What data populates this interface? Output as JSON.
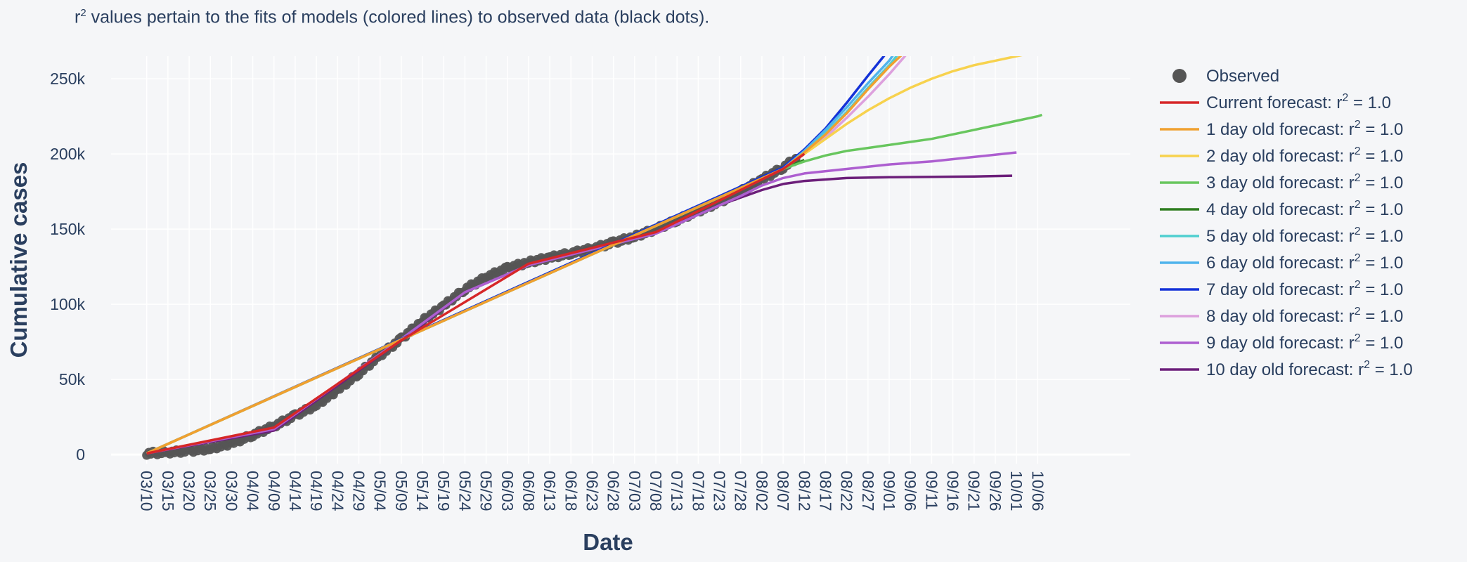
{
  "note": {
    "prefix": "r",
    "sup": "2",
    "text": " values pertain to the fits of models (colored lines) to observed data (black dots)."
  },
  "chart_data": {
    "type": "line",
    "title": "",
    "xlabel": "Date",
    "ylabel": "Cumulative cases",
    "x_tick_labels": [
      "03/10",
      "03/15",
      "03/20",
      "03/25",
      "03/30",
      "04/04",
      "04/09",
      "04/14",
      "04/19",
      "04/24",
      "04/29",
      "05/04",
      "05/09",
      "05/14",
      "05/19",
      "05/24",
      "05/29",
      "06/03",
      "06/08",
      "06/13",
      "06/18",
      "06/23",
      "06/28",
      "07/03",
      "07/08",
      "07/13",
      "07/18",
      "07/23",
      "07/28",
      "08/02",
      "08/07",
      "08/12",
      "08/17",
      "08/22",
      "08/27",
      "09/01",
      "09/06",
      "09/11",
      "09/16",
      "09/21",
      "09/26",
      "10/01",
      "10/06"
    ],
    "xlim": [
      "03/07",
      "10/09"
    ],
    "y_ticks": [
      0,
      50000,
      100000,
      150000,
      200000,
      250000
    ],
    "y_tick_labels": [
      "0",
      "50k",
      "100k",
      "150k",
      "200k",
      "250k"
    ],
    "ylim": [
      -6000,
      265000
    ],
    "grid": true,
    "legend_position": "right",
    "observed": {
      "name": "Observed",
      "color": "#555555",
      "points": [
        [
          "03/10",
          800
        ],
        [
          "03/15",
          1500
        ],
        [
          "03/20",
          2500
        ],
        [
          "03/25",
          4000
        ],
        [
          "03/30",
          7500
        ],
        [
          "04/04",
          13000
        ],
        [
          "04/09",
          19000
        ],
        [
          "04/14",
          26000
        ],
        [
          "04/19",
          33000
        ],
        [
          "04/24",
          43000
        ],
        [
          "04/29",
          54000
        ],
        [
          "05/04",
          66000
        ],
        [
          "05/09",
          77000
        ],
        [
          "05/14",
          89000
        ],
        [
          "05/19",
          99000
        ],
        [
          "05/24",
          110000
        ],
        [
          "05/29",
          118000
        ],
        [
          "06/03",
          124000
        ],
        [
          "06/08",
          128000
        ],
        [
          "06/13",
          131000
        ],
        [
          "06/18",
          134000
        ],
        [
          "06/23",
          137000
        ],
        [
          "06/28",
          141000
        ],
        [
          "07/03",
          145000
        ],
        [
          "07/08",
          150000
        ],
        [
          "07/13",
          156000
        ],
        [
          "07/18",
          162000
        ],
        [
          "07/23",
          168000
        ],
        [
          "07/28",
          175000
        ],
        [
          "08/02",
          183000
        ],
        [
          "08/07",
          191000
        ],
        [
          "08/10",
          197000
        ]
      ]
    },
    "series": [
      {
        "name": "Current forecast: r",
        "r2": " = 1.0",
        "color": "#d62728",
        "points": [
          [
            "03/10",
            800
          ],
          [
            "04/09",
            18000
          ],
          [
            "05/09",
            76000
          ],
          [
            "06/08",
            127000
          ],
          [
            "07/08",
            148000
          ],
          [
            "08/07",
            190000
          ],
          [
            "08/12",
            200000
          ]
        ]
      },
      {
        "name": "1 day old forecast: r",
        "r2": " = 1.0",
        "color": "#f0a030",
        "points": [
          [
            "03/10",
            800
          ],
          [
            "08/07",
            190000
          ],
          [
            "08/12",
            201000
          ],
          [
            "08/17",
            213000
          ],
          [
            "08/22",
            227000
          ],
          [
            "08/27",
            243000
          ],
          [
            "09/01",
            258000
          ],
          [
            "09/04",
            266000
          ]
        ]
      },
      {
        "name": "2 day old forecast: r",
        "r2": " = 1.0",
        "color": "#f7d24e",
        "points": [
          [
            "03/10",
            800
          ],
          [
            "08/07",
            190000
          ],
          [
            "08/12",
            200000
          ],
          [
            "08/17",
            210000
          ],
          [
            "08/22",
            220000
          ],
          [
            "08/27",
            229000
          ],
          [
            "09/01",
            237000
          ],
          [
            "09/06",
            244000
          ],
          [
            "09/11",
            250000
          ],
          [
            "09/16",
            255000
          ],
          [
            "09/21",
            259000
          ],
          [
            "09/26",
            262000
          ],
          [
            "10/01",
            265000
          ],
          [
            "10/06",
            268000
          ]
        ]
      },
      {
        "name": "3 day old forecast: r",
        "r2": " = 1.0",
        "color": "#68c65e",
        "points": [
          [
            "03/10",
            800
          ],
          [
            "08/07",
            190000
          ],
          [
            "08/12",
            195000
          ],
          [
            "08/17",
            199000
          ],
          [
            "08/22",
            202000
          ],
          [
            "08/27",
            204000
          ],
          [
            "09/01",
            206000
          ],
          [
            "09/06",
            208000
          ],
          [
            "09/11",
            210000
          ],
          [
            "09/16",
            213000
          ],
          [
            "09/21",
            216000
          ],
          [
            "09/26",
            219000
          ],
          [
            "10/01",
            222000
          ],
          [
            "10/06",
            225000
          ],
          [
            "10/07",
            226000
          ]
        ]
      },
      {
        "name": "4 day old forecast: r",
        "r2": " = 1.0",
        "color": "#2e7d1f",
        "points": [
          [
            "03/10",
            800
          ],
          [
            "08/07",
            190000
          ],
          [
            "08/12",
            196000
          ]
        ]
      },
      {
        "name": "5 day old forecast: r",
        "r2": " = 1.0",
        "color": "#4fcfd0",
        "points": [
          [
            "03/10",
            800
          ],
          [
            "08/07",
            190000
          ],
          [
            "08/12",
            201000
          ],
          [
            "08/17",
            214000
          ],
          [
            "08/22",
            228000
          ],
          [
            "08/27",
            244000
          ],
          [
            "09/01",
            259000
          ],
          [
            "09/03",
            266000
          ]
        ]
      },
      {
        "name": "6 day old forecast: r",
        "r2": " = 1.0",
        "color": "#4fb3ec",
        "points": [
          [
            "03/10",
            800
          ],
          [
            "08/07",
            190000
          ],
          [
            "08/12",
            202000
          ],
          [
            "08/17",
            216000
          ],
          [
            "08/22",
            231000
          ],
          [
            "08/27",
            247000
          ],
          [
            "09/01",
            262000
          ],
          [
            "09/02",
            266000
          ]
        ]
      },
      {
        "name": "7 day old forecast: r",
        "r2": " = 1.0",
        "color": "#1432d8",
        "points": [
          [
            "03/10",
            800
          ],
          [
            "08/07",
            191000
          ],
          [
            "08/12",
            203000
          ],
          [
            "08/17",
            217000
          ],
          [
            "08/22",
            234000
          ],
          [
            "08/27",
            252000
          ],
          [
            "08/31",
            266000
          ]
        ]
      },
      {
        "name": "8 day old forecast: r",
        "r2": " = 1.0",
        "color": "#dda0dd",
        "points": [
          [
            "03/10",
            800
          ],
          [
            "08/07",
            190000
          ],
          [
            "08/12",
            200000
          ],
          [
            "08/17",
            211000
          ],
          [
            "08/22",
            224000
          ],
          [
            "08/27",
            238000
          ],
          [
            "09/01",
            253000
          ],
          [
            "09/05",
            266000
          ]
        ]
      },
      {
        "name": "9 day old forecast: r",
        "r2": " = 1.0",
        "color": "#ad5fd0",
        "points": [
          [
            "03/10",
            800
          ],
          [
            "04/09",
            17000
          ],
          [
            "05/09",
            77000
          ],
          [
            "05/24",
            108000
          ],
          [
            "06/08",
            126000
          ],
          [
            "07/08",
            147000
          ],
          [
            "07/28",
            172000
          ],
          [
            "08/02",
            179000
          ],
          [
            "08/07",
            184000
          ],
          [
            "08/12",
            187000
          ],
          [
            "08/22",
            190000
          ],
          [
            "09/01",
            193000
          ],
          [
            "09/11",
            195000
          ],
          [
            "09/21",
            198000
          ],
          [
            "10/01",
            201000
          ]
        ]
      },
      {
        "name": "10 day old forecast: r",
        "r2": " = 1.0",
        "color": "#6c1f7a",
        "points": [
          [
            "03/10",
            800
          ],
          [
            "04/09",
            16000
          ],
          [
            "05/09",
            76000
          ],
          [
            "05/24",
            108000
          ],
          [
            "06/08",
            126000
          ],
          [
            "07/08",
            147000
          ],
          [
            "07/23",
            166000
          ],
          [
            "08/02",
            176000
          ],
          [
            "08/07",
            180000
          ],
          [
            "08/12",
            182000
          ],
          [
            "08/22",
            184000
          ],
          [
            "09/01",
            184500
          ],
          [
            "09/21",
            185000
          ],
          [
            "09/30",
            185500
          ]
        ]
      }
    ]
  }
}
